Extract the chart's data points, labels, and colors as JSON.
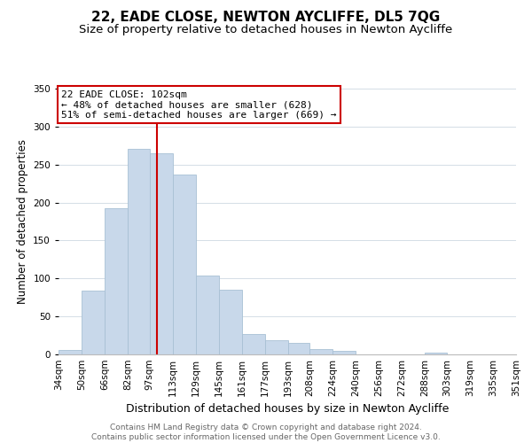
{
  "title": "22, EADE CLOSE, NEWTON AYCLIFFE, DL5 7QG",
  "subtitle": "Size of property relative to detached houses in Newton Aycliffe",
  "xlabel": "Distribution of detached houses by size in Newton Aycliffe",
  "ylabel": "Number of detached properties",
  "bar_color": "#c8d8ea",
  "bar_edge_color": "#a8c0d4",
  "vline_x": 102,
  "vline_color": "#cc0000",
  "categories": [
    "34sqm",
    "50sqm",
    "66sqm",
    "82sqm",
    "97sqm",
    "113sqm",
    "129sqm",
    "145sqm",
    "161sqm",
    "177sqm",
    "193sqm",
    "208sqm",
    "224sqm",
    "240sqm",
    "256sqm",
    "272sqm",
    "288sqm",
    "303sqm",
    "319sqm",
    "335sqm",
    "351sqm"
  ],
  "bin_edges": [
    34,
    50,
    66,
    82,
    97,
    113,
    129,
    145,
    161,
    177,
    193,
    208,
    224,
    240,
    256,
    272,
    288,
    303,
    319,
    335,
    351
  ],
  "values": [
    6,
    84,
    192,
    271,
    265,
    237,
    104,
    85,
    27,
    19,
    15,
    7,
    5,
    0,
    0,
    0,
    2,
    0,
    0,
    0,
    2
  ],
  "ylim": [
    0,
    350
  ],
  "yticks": [
    0,
    50,
    100,
    150,
    200,
    250,
    300,
    350
  ],
  "annotation_title": "22 EADE CLOSE: 102sqm",
  "annotation_line1": "← 48% of detached houses are smaller (628)",
  "annotation_line2": "51% of semi-detached houses are larger (669) →",
  "annotation_box_color": "#ffffff",
  "annotation_box_edge": "#cc0000",
  "footer_line1": "Contains HM Land Registry data © Crown copyright and database right 2024.",
  "footer_line2": "Contains public sector information licensed under the Open Government Licence v3.0.",
  "background_color": "#ffffff",
  "plot_background": "#ffffff",
  "title_fontsize": 11,
  "subtitle_fontsize": 9.5,
  "xlabel_fontsize": 9,
  "ylabel_fontsize": 8.5,
  "footer_fontsize": 6.5,
  "tick_fontsize": 7.5,
  "annot_fontsize": 8
}
